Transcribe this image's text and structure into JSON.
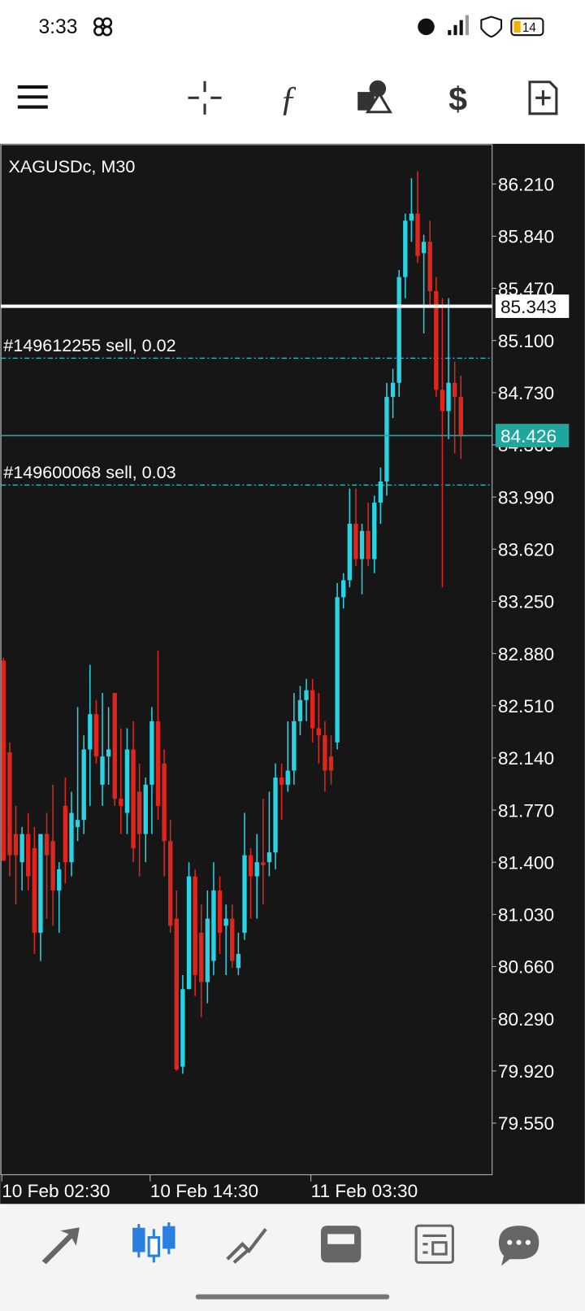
{
  "status_bar": {
    "time": "3:33",
    "battery": "14"
  },
  "chart_data": {
    "type": "candlestick",
    "title": "XAGUSDc, M30",
    "categories": [
      "10 Feb 02:30",
      null,
      null,
      null,
      null,
      null,
      null,
      null,
      null,
      null,
      null,
      null,
      null,
      null,
      null,
      null,
      null,
      null,
      null,
      null,
      null,
      null,
      null,
      null,
      "10 Feb 14:30",
      null,
      null,
      null,
      null,
      null,
      null,
      null,
      null,
      null,
      null,
      null,
      null,
      null,
      null,
      null,
      null,
      null,
      null,
      null,
      null,
      null,
      null,
      null,
      null,
      null,
      "11 Feb 03:30",
      null,
      null,
      null,
      null,
      null,
      null,
      null,
      null,
      null,
      null,
      null,
      null,
      null,
      null,
      null,
      null,
      null,
      null,
      null,
      null,
      null,
      null,
      null,
      null
    ],
    "open": [
      82.83,
      82.18,
      81.6,
      81.4,
      81.6,
      81.5,
      80.9,
      81.6,
      81.55,
      81.2,
      81.8,
      81.4,
      81.65,
      81.7,
      82.2,
      82.45,
      81.95,
      82.15,
      82.6,
      81.85,
      81.75,
      82.2,
      81.9,
      81.6,
      81.95,
      82.4,
      82.1,
      81.55,
      81.0,
      79.95,
      80.5,
      81.3,
      80.9,
      80.55,
      80.7,
      81.2,
      80.95,
      81.0,
      80.65,
      80.9,
      81.45,
      81.3,
      81.4,
      81.4,
      81.47,
      82.0,
      81.95,
      82.05,
      82.4,
      82.55,
      82.62,
      82.35,
      82.3,
      82.15,
      82.25,
      83.28,
      83.4,
      83.8,
      83.55,
      83.75,
      83.55,
      83.95,
      84.1,
      84.7,
      84.8,
      85.55,
      85.95,
      86.0,
      85.72,
      85.8,
      85.45,
      84.75,
      84.6,
      84.8,
      84.7
    ],
    "high": [
      82.85,
      82.25,
      81.8,
      81.65,
      81.75,
      81.65,
      81.6,
      81.75,
      81.95,
      81.4,
      82.0,
      81.9,
      82.5,
      82.3,
      82.8,
      82.55,
      82.6,
      82.5,
      82.6,
      82.35,
      82.35,
      82.4,
      82.1,
      82.0,
      82.5,
      82.9,
      82.2,
      81.7,
      81.2,
      80.6,
      81.4,
      81.35,
      81.1,
      81.2,
      81.4,
      81.3,
      81.1,
      81.1,
      80.9,
      81.75,
      81.5,
      81.6,
      81.85,
      81.9,
      82.1,
      82.1,
      82.4,
      82.6,
      82.65,
      82.7,
      82.7,
      82.6,
      82.4,
      82.3,
      83.38,
      83.45,
      84.05,
      84.05,
      83.8,
      83.95,
      84.0,
      84.2,
      84.8,
      84.9,
      85.6,
      86.0,
      86.25,
      86.3,
      85.85,
      85.95,
      85.55,
      85.4,
      85.4,
      84.95,
      84.85
    ],
    "low": [
      81.41,
      81.3,
      81.1,
      81.2,
      81.2,
      80.75,
      80.7,
      81.0,
      80.95,
      80.9,
      81.25,
      81.3,
      81.55,
      81.6,
      81.8,
      82.1,
      81.8,
      81.95,
      81.8,
      81.6,
      81.6,
      81.4,
      81.3,
      81.4,
      81.6,
      81.7,
      81.3,
      80.9,
      79.92,
      79.9,
      80.5,
      80.45,
      80.3,
      80.4,
      80.6,
      80.75,
      80.6,
      80.65,
      80.6,
      80.85,
      81.0,
      81.0,
      81.1,
      81.3,
      81.35,
      81.7,
      81.9,
      81.95,
      82.3,
      82.4,
      82.25,
      82.1,
      81.9,
      81.95,
      82.2,
      83.2,
      83.35,
      83.5,
      83.3,
      83.5,
      83.45,
      83.8,
      84.0,
      84.55,
      84.7,
      85.4,
      85.8,
      85.65,
      85.15,
      85.35,
      84.7,
      83.35,
      84.4,
      84.3,
      84.26
    ],
    "close": [
      81.41,
      81.45,
      81.45,
      81.6,
      81.3,
      80.9,
      81.6,
      81.45,
      81.2,
      81.35,
      81.4,
      81.75,
      81.7,
      82.2,
      82.45,
      82.15,
      82.15,
      82.2,
      81.85,
      81.8,
      82.2,
      81.5,
      81.6,
      81.95,
      82.4,
      81.8,
      81.55,
      80.95,
      79.93,
      80.5,
      81.3,
      80.6,
      80.55,
      81.0,
      81.2,
      80.9,
      81.0,
      80.7,
      80.75,
      81.45,
      81.3,
      81.4,
      81.38,
      81.47,
      82.0,
      81.95,
      82.05,
      82.4,
      82.55,
      82.62,
      82.35,
      82.3,
      82.05,
      82.05,
      83.28,
      83.4,
      83.8,
      83.55,
      83.75,
      83.55,
      83.95,
      84.1,
      84.7,
      84.8,
      85.55,
      85.95,
      86.0,
      85.7,
      85.8,
      85.45,
      84.75,
      84.6,
      84.8,
      84.7,
      84.43
    ],
    "up_color": "#29d3e3",
    "down_color": "#e0261c",
    "ylim": [
      79.184,
      86.495
    ],
    "yticks": [
      {
        "value": 86.21,
        "label": "86.210"
      },
      {
        "value": 85.84,
        "label": "85.840"
      },
      {
        "value": 85.47,
        "label": "85.470"
      },
      {
        "value": 85.1,
        "label": "85.100"
      },
      {
        "value": 84.73,
        "label": "84.730"
      },
      {
        "value": 84.36,
        "label": "84.360"
      },
      {
        "value": 83.99,
        "label": "83.990"
      },
      {
        "value": 83.62,
        "label": "83.620"
      },
      {
        "value": 83.25,
        "label": "83.250"
      },
      {
        "value": 82.88,
        "label": "82.880"
      },
      {
        "value": 82.51,
        "label": "82.510"
      },
      {
        "value": 82.14,
        "label": "82.140"
      },
      {
        "value": 81.77,
        "label": "81.770"
      },
      {
        "value": 81.4,
        "label": "81.400"
      },
      {
        "value": 81.03,
        "label": "81.030"
      },
      {
        "value": 80.66,
        "label": "80.660"
      },
      {
        "value": 80.29,
        "label": "80.290"
      },
      {
        "value": 79.92,
        "label": "79.920"
      },
      {
        "value": 79.55,
        "label": "79.550"
      }
    ],
    "order_lines": [
      {
        "label": "#149612255 sell, 0.02",
        "value": 84.975,
        "color": "#2bbfc8"
      },
      {
        "label": "#149600068 sell, 0.03",
        "value": 84.075,
        "color": "#2bbfc8"
      }
    ],
    "price_lines": [
      {
        "value": 85.343,
        "color": "#ffffff",
        "text_color": "#111111"
      },
      {
        "value": 84.426,
        "color": "#1fa79d",
        "text_color": "#ffffff"
      }
    ]
  }
}
